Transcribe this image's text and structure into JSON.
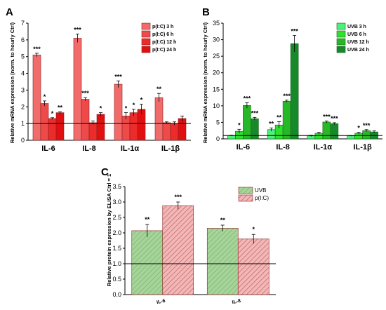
{
  "chart_data": [
    {
      "panel_label": "A",
      "type": "bar",
      "ylabel": "Relative mRNA expression (norm. to hourly Ctrl)",
      "ylim": [
        0,
        7
      ],
      "yticks": [
        0,
        1,
        2,
        3,
        4,
        5,
        6,
        7
      ],
      "reference_line": 1,
      "categories": [
        "IL-6",
        "IL-8",
        "IL-1α",
        "IL-1β"
      ],
      "legend_placement": "top-right",
      "series": [
        {
          "name": "p(I:C) 3 h",
          "color": "#f26b6b",
          "values": [
            5.1,
            6.1,
            3.35,
            2.55
          ],
          "errors": [
            0.1,
            0.25,
            0.2,
            0.25
          ],
          "stars": [
            "***",
            "***",
            "***",
            "**"
          ]
        },
        {
          "name": "p(I:C) 6 h",
          "color": "#ef4a4a",
          "values": [
            2.2,
            2.45,
            1.45,
            1.05
          ],
          "errors": [
            0.15,
            0.1,
            0.2,
            0.05
          ],
          "stars": [
            "*",
            "***",
            "*",
            ""
          ]
        },
        {
          "name": "p(I:C) 12 h",
          "color": "#ec2b2b",
          "values": [
            1.3,
            1.05,
            1.65,
            1.0
          ],
          "errors": [
            0.05,
            0.1,
            0.2,
            0.1
          ],
          "stars": [
            "*",
            "",
            "*",
            ""
          ]
        },
        {
          "name": "p(I:C) 24 h",
          "color": "#e01010",
          "values": [
            1.65,
            1.55,
            1.85,
            1.3
          ],
          "errors": [
            0.05,
            0.1,
            0.3,
            0.15
          ],
          "stars": [
            "**",
            "*",
            "*",
            ""
          ]
        }
      ]
    },
    {
      "panel_label": "B",
      "type": "bar",
      "ylabel": "Relative mRNA expression (norm. to hourly Ctrl)",
      "ylim": [
        0,
        35
      ],
      "yticks": [
        0,
        5,
        10,
        15,
        20,
        25,
        30,
        35
      ],
      "reference_line": 1,
      "categories": [
        "IL-6",
        "IL-8",
        "IL-1α",
        "IL-1β"
      ],
      "legend_placement": "top-right",
      "series": [
        {
          "name": "UVB 3 h",
          "color": "#4cf07a",
          "values": [
            1.0,
            2.8,
            0.9,
            0.9
          ],
          "errors": [
            0.1,
            0.5,
            0.2,
            0.1
          ],
          "stars": [
            "",
            "**",
            "",
            ""
          ]
        },
        {
          "name": "UVB 6 h",
          "color": "#2ee02e",
          "values": [
            2.3,
            4.2,
            1.7,
            1.7
          ],
          "errors": [
            0.6,
            1.0,
            0.3,
            0.3
          ],
          "stars": [
            "*",
            "**",
            "",
            "*"
          ]
        },
        {
          "name": "UVB 12 h",
          "color": "#27b827",
          "values": [
            10.1,
            11.4,
            5.1,
            2.5
          ],
          "errors": [
            0.8,
            0.3,
            0.3,
            0.3
          ],
          "stars": [
            "***",
            "***",
            "***",
            "***"
          ]
        },
        {
          "name": "UVB 24 h",
          "color": "#168a2a",
          "values": [
            6.1,
            28.8,
            4.6,
            2.1
          ],
          "errors": [
            0.4,
            2.5,
            0.3,
            0.3
          ],
          "stars": [
            "***",
            "***",
            "***",
            ""
          ]
        }
      ]
    },
    {
      "panel_label": "C",
      "type": "bar",
      "ylabel": "Relative protein expression by ELISA Ctrl = 1",
      "ylim": [
        0,
        3.5
      ],
      "yticks": [
        0.0,
        0.5,
        1.0,
        1.5,
        2.0,
        2.5,
        3.0,
        3.5
      ],
      "reference_line": 1.0,
      "categories": [
        "IL-6",
        "IL-8"
      ],
      "legend_placement": "top-right",
      "series": [
        {
          "name": "UVB",
          "color": "#a6d49a",
          "hatch": "#7fb872",
          "values": [
            2.07,
            2.15
          ],
          "errors": [
            0.2,
            0.1
          ],
          "stars": [
            "**",
            "**"
          ]
        },
        {
          "name": "p(I:C)",
          "color": "#f2b8b8",
          "hatch": "#c96a6a",
          "values": [
            2.88,
            1.8
          ],
          "errors": [
            0.12,
            0.15
          ],
          "stars": [
            "***",
            "*"
          ]
        }
      ]
    }
  ]
}
